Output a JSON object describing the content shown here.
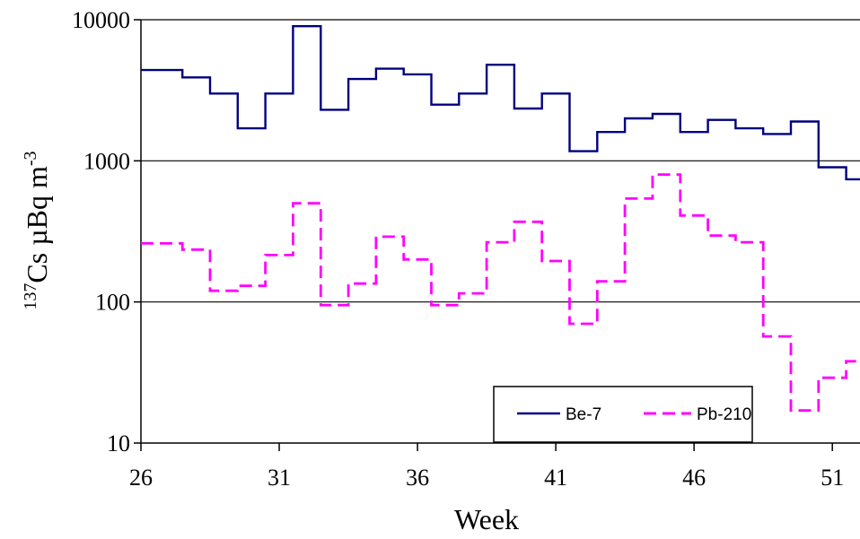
{
  "chart_data": {
    "type": "line",
    "title": "",
    "xlabel": "Week",
    "ylabel_main": "Cs µBq m",
    "ylabel_pre": "137",
    "ylabel_sup": "-3",
    "yscale": "log",
    "xlim": [
      26,
      52
    ],
    "ylim": [
      10,
      10000
    ],
    "x_ticks": [
      "26",
      "31",
      "36",
      "41",
      "46",
      "51"
    ],
    "y_ticks": [
      "10",
      "100",
      "1000",
      "10000"
    ],
    "grid": "horizontal",
    "legend": "bottom-right",
    "series": [
      {
        "name": "Be-7",
        "color": "#000080",
        "dash": "solid",
        "step_edges": [
          26,
          27.5,
          28.5,
          29.5,
          30.5,
          31.5,
          32.5,
          33.5,
          34.5,
          35.5,
          36.5,
          37.5,
          38.5,
          39.5,
          40.5,
          41.5,
          42.5,
          43.5,
          44.5,
          45.5,
          46.5,
          47.5,
          48.5,
          49.5,
          50.5,
          51.5,
          52
        ],
        "values": [
          4400,
          3900,
          3000,
          1700,
          3000,
          9000,
          2300,
          3800,
          4500,
          4100,
          2500,
          3000,
          4800,
          2350,
          3000,
          1170,
          1600,
          2000,
          2150,
          1600,
          1950,
          1700,
          1550,
          1900,
          900,
          740
        ]
      },
      {
        "name": "Pb-210",
        "color": "#ff00ff",
        "dash": "dashed",
        "step_edges": [
          26,
          27.5,
          28.5,
          29.5,
          30.5,
          31.5,
          32.5,
          33.5,
          34.5,
          35.5,
          36.5,
          37.5,
          38.5,
          39.5,
          40.5,
          41.5,
          42.5,
          43.5,
          44.5,
          45.5,
          46.5,
          47.5,
          48.5,
          49.5,
          50.5,
          51.5,
          52
        ],
        "values": [
          260,
          235,
          120,
          130,
          215,
          500,
          95,
          135,
          290,
          200,
          95,
          115,
          265,
          370,
          195,
          70,
          140,
          540,
          800,
          410,
          295,
          265,
          57,
          17,
          29,
          38
        ]
      }
    ]
  }
}
